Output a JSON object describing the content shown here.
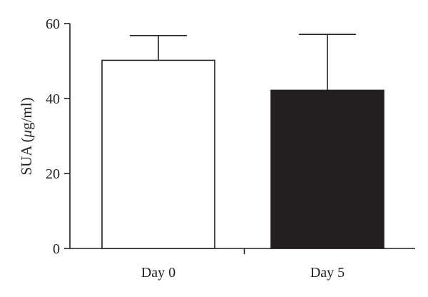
{
  "chart_data": {
    "type": "bar",
    "title": "",
    "xlabel": "",
    "ylabel": "SUA (",
    "ylabel_mu": "μ",
    "ylabel_rest": "g/ml)",
    "ylim": [
      0,
      60
    ],
    "yticks": [
      0,
      20,
      40,
      60
    ],
    "categories": [
      "Day 0",
      "Day 5"
    ],
    "values": [
      50.2,
      42.2
    ],
    "error_upper": [
      56.8,
      57.1
    ],
    "bar_colors": [
      "#ffffff",
      "#231f20"
    ],
    "grid": false
  }
}
